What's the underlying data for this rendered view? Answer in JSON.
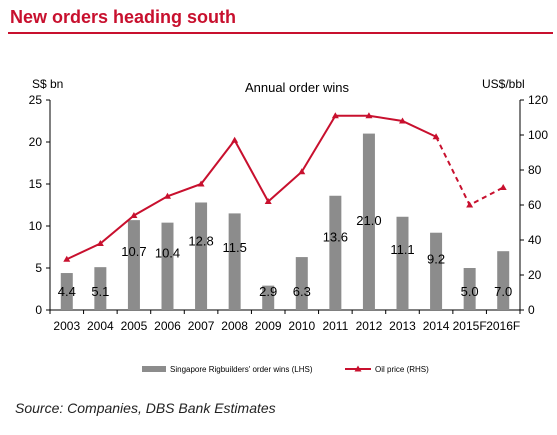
{
  "heading": "New orders heading south",
  "source": "Source: Companies, DBS Bank Estimates",
  "chart_data": {
    "type": "bar",
    "title": "Annual order wins",
    "ylabel_left": "S$ bn",
    "ylabel_right": "US$/bbl",
    "categories": [
      "2003",
      "2004",
      "2005",
      "2006",
      "2007",
      "2008",
      "2009",
      "2010",
      "2011",
      "2012",
      "2013",
      "2014",
      "2015F",
      "2016F"
    ],
    "ylim_left": [
      0,
      25
    ],
    "yticks_left": [
      0,
      5,
      10,
      15,
      20,
      25
    ],
    "ylim_right": [
      0,
      120
    ],
    "yticks_right": [
      0,
      20,
      40,
      60,
      80,
      100,
      120
    ],
    "grid": false,
    "legend_position": "bottom",
    "series": [
      {
        "name": "Singapore Rigbuilders' order wins (LHS)",
        "type": "bar",
        "axis": "left",
        "color": "#8c8c8c",
        "values": [
          4.4,
          5.1,
          10.7,
          10.4,
          12.8,
          11.5,
          2.9,
          6.3,
          13.6,
          21.0,
          11.1,
          9.2,
          5.0,
          7.0
        ],
        "labels": [
          "4.4",
          "5.1",
          "10.7",
          "10.4",
          "12.8",
          "11.5",
          "2.9",
          "6.3",
          "13.6",
          "21.0",
          "11.1",
          "9.2",
          "5.0",
          "7.0"
        ]
      },
      {
        "name": "Oil price (RHS)",
        "type": "line",
        "axis": "right",
        "color": "#c8102e",
        "values": [
          29,
          38,
          54,
          65,
          72,
          97,
          62,
          79,
          111,
          111,
          108,
          99,
          60,
          70
        ],
        "dashed_from_index": 11
      }
    ]
  }
}
